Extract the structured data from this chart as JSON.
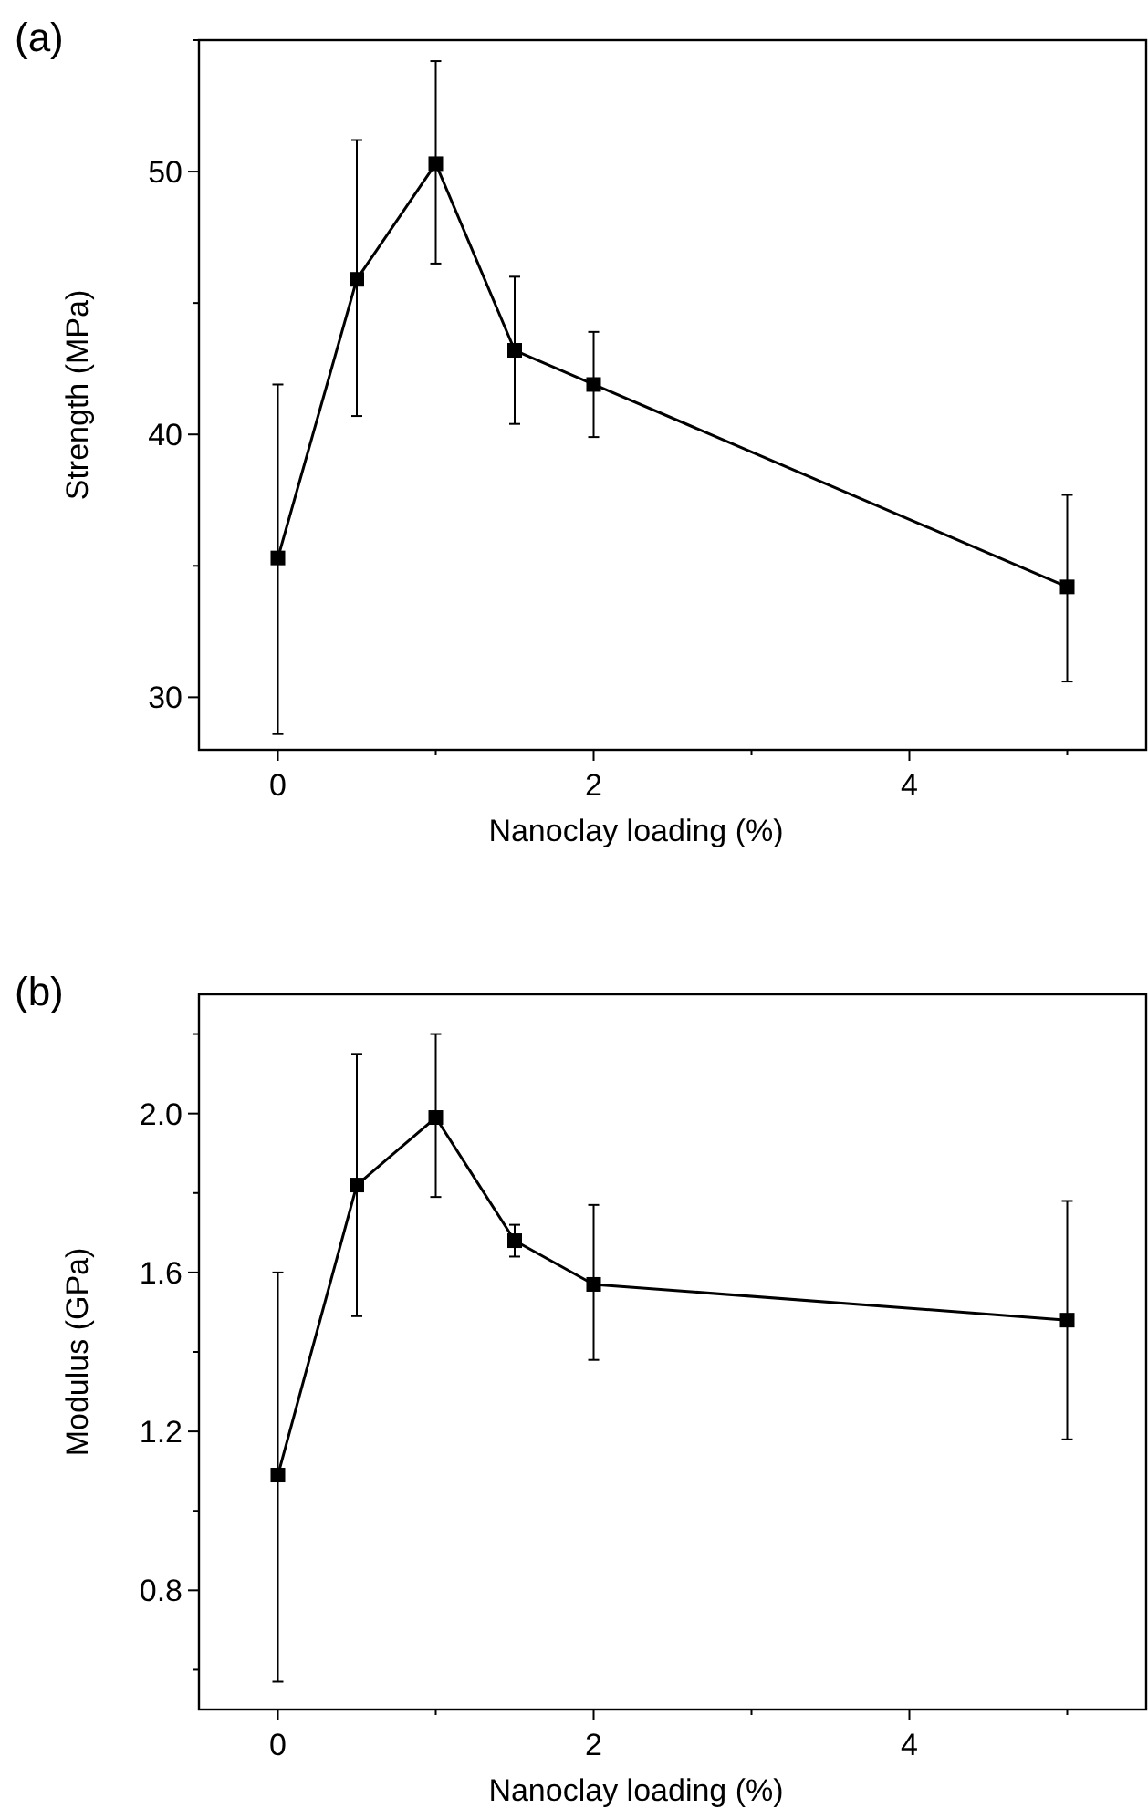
{
  "chart_data": [
    {
      "type": "line",
      "title": "(a)",
      "xlabel": "Nanoclay loading (%)",
      "ylabel": "Strength (MPa)",
      "x": [
        0,
        0.5,
        1,
        1.5,
        2,
        5
      ],
      "series": [
        {
          "color": "#000000",
          "values": [
            35.3,
            45.9,
            50.3,
            43.2,
            41.9,
            34.2
          ],
          "errors": [
            [
              28.6,
              41.9
            ],
            [
              40.7,
              51.2
            ],
            [
              46.5,
              54.2
            ],
            [
              40.4,
              46.0
            ],
            [
              39.9,
              43.9
            ],
            [
              30.6,
              37.7
            ]
          ]
        }
      ],
      "xlim": [
        -0.5,
        5.5
      ],
      "xticks": [
        0,
        {
          "value": 1,
          "label": null
        },
        2,
        {
          "value": 3,
          "label": null
        },
        4,
        {
          "value": 5,
          "label": null
        }
      ],
      "ylim": [
        28,
        55
      ],
      "yticks": [
        30,
        {
          "value": 35,
          "label": null
        },
        40,
        {
          "value": 45,
          "label": null
        },
        50,
        {
          "value": 55,
          "label": null
        }
      ],
      "marker": "square",
      "line_style": "solid"
    },
    {
      "type": "line",
      "title": "(b)",
      "xlabel": "Nanoclay loading (%)",
      "ylabel": "Modulus (GPa)",
      "x": [
        0,
        0.5,
        1,
        1.5,
        2,
        5
      ],
      "series": [
        {
          "color": "#000000",
          "values": [
            1.09,
            1.82,
            1.99,
            1.68,
            1.57,
            1.48
          ],
          "errors": [
            [
              0.57,
              1.6
            ],
            [
              1.49,
              2.15
            ],
            [
              1.79,
              2.2
            ],
            [
              1.64,
              1.72
            ],
            [
              1.38,
              1.77
            ],
            [
              1.18,
              1.78
            ]
          ]
        }
      ],
      "xlim": [
        -0.5,
        5.5
      ],
      "xticks": [
        0,
        {
          "value": 1,
          "label": null
        },
        2,
        {
          "value": 3,
          "label": null
        },
        4,
        {
          "value": 5,
          "label": null
        }
      ],
      "ylim": [
        0.5,
        2.3
      ],
      "yticks": [
        {
          "value": 0.6,
          "label": null
        },
        {
          "value": 0.8,
          "label": "0.8"
        },
        {
          "value": 1.0,
          "label": null
        },
        {
          "value": 1.2,
          "label": "1.2"
        },
        {
          "value": 1.4,
          "label": null
        },
        {
          "value": 1.6,
          "label": "1.6"
        },
        {
          "value": 1.8,
          "label": null
        },
        {
          "value": 2.0,
          "label": "2.0"
        },
        {
          "value": 2.2,
          "label": null
        }
      ],
      "marker": "square",
      "line_style": "solid"
    }
  ]
}
